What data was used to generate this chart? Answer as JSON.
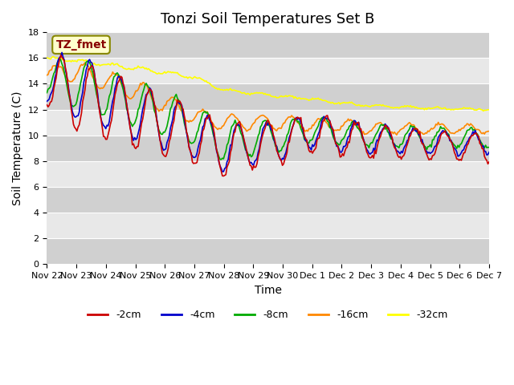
{
  "title": "Tonzi Soil Temperatures Set B",
  "xlabel": "Time",
  "ylabel": "Soil Temperature (C)",
  "annotation": "TZ_fmet",
  "ylim": [
    0,
    18
  ],
  "yticks": [
    0,
    2,
    4,
    6,
    8,
    10,
    12,
    14,
    16,
    18
  ],
  "colors": {
    "-2cm": "#cc0000",
    "-4cm": "#0000cc",
    "-8cm": "#00aa00",
    "-16cm": "#ff8800",
    "-32cm": "#ffff00"
  },
  "legend_labels": [
    "-2cm",
    "-4cm",
    "-8cm",
    "-16cm",
    "-32cm"
  ],
  "background_color": "#ffffff",
  "plot_bg_color": "#e8e8e8",
  "stripe_color": "#d0d0d0",
  "annotation_bg": "#ffffcc",
  "annotation_fg": "#880000",
  "x_tick_labels": [
    "Nov 22",
    "Nov 23",
    "Nov 24",
    "Nov 25",
    "Nov 26",
    "Nov 27",
    "Nov 28",
    "Nov 29",
    "Nov 30",
    "Dec 1",
    "Dec 2",
    "Dec 3",
    "Dec 4",
    "Dec 5",
    "Dec 6",
    "Dec 7"
  ],
  "title_fontsize": 13,
  "axis_label_fontsize": 10,
  "tick_fontsize": 8
}
